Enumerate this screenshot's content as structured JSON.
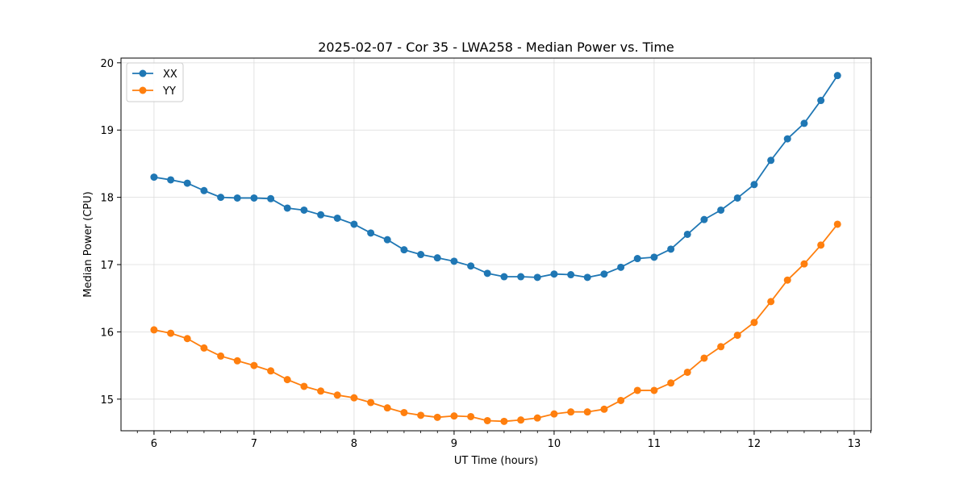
{
  "chart_data": {
    "type": "line",
    "title": "2025-02-07 - Cor 35 - LWA258 - Median Power vs. Time",
    "xlabel": "UT Time (hours)",
    "ylabel": "Median Power (CPU)",
    "xlim": [
      5.67,
      13.17
    ],
    "ylim": [
      14.53,
      20.07
    ],
    "xticks": [
      6,
      7,
      8,
      9,
      10,
      11,
      12,
      13
    ],
    "yticks": [
      15,
      16,
      17,
      18,
      19,
      20
    ],
    "grid": true,
    "legend_position": "top-left",
    "x": [
      6.0,
      6.167,
      6.333,
      6.5,
      6.667,
      6.833,
      7.0,
      7.167,
      7.333,
      7.5,
      7.667,
      7.833,
      8.0,
      8.167,
      8.333,
      8.5,
      8.667,
      8.833,
      9.0,
      9.167,
      9.333,
      9.5,
      9.667,
      9.833,
      10.0,
      10.167,
      10.333,
      10.5,
      10.667,
      10.833,
      11.0,
      11.167,
      11.333,
      11.5,
      11.667,
      11.833,
      12.0,
      12.167,
      12.333,
      12.5,
      12.667,
      12.833
    ],
    "series": [
      {
        "name": "XX",
        "color": "#1f77b4",
        "values": [
          18.3,
          18.26,
          18.21,
          18.1,
          18.0,
          17.99,
          17.99,
          17.98,
          17.84,
          17.81,
          17.74,
          17.69,
          17.6,
          17.47,
          17.37,
          17.22,
          17.15,
          17.1,
          17.05,
          16.98,
          16.87,
          16.82,
          16.82,
          16.81,
          16.86,
          16.85,
          16.81,
          16.86,
          16.96,
          17.09,
          17.11,
          17.23,
          17.45,
          17.67,
          17.81,
          17.99,
          18.19,
          18.55,
          18.87,
          19.1,
          19.44,
          19.81
        ]
      },
      {
        "name": "YY",
        "color": "#ff7f0e",
        "values": [
          16.03,
          15.98,
          15.9,
          15.76,
          15.64,
          15.57,
          15.5,
          15.42,
          15.29,
          15.19,
          15.12,
          15.06,
          15.02,
          14.95,
          14.87,
          14.8,
          14.76,
          14.73,
          14.75,
          14.74,
          14.68,
          14.67,
          14.69,
          14.72,
          14.78,
          14.81,
          14.81,
          14.85,
          14.98,
          15.13,
          15.13,
          15.24,
          15.4,
          15.61,
          15.78,
          15.95,
          16.14,
          16.45,
          16.77,
          17.01,
          17.29,
          17.6
        ]
      }
    ]
  }
}
